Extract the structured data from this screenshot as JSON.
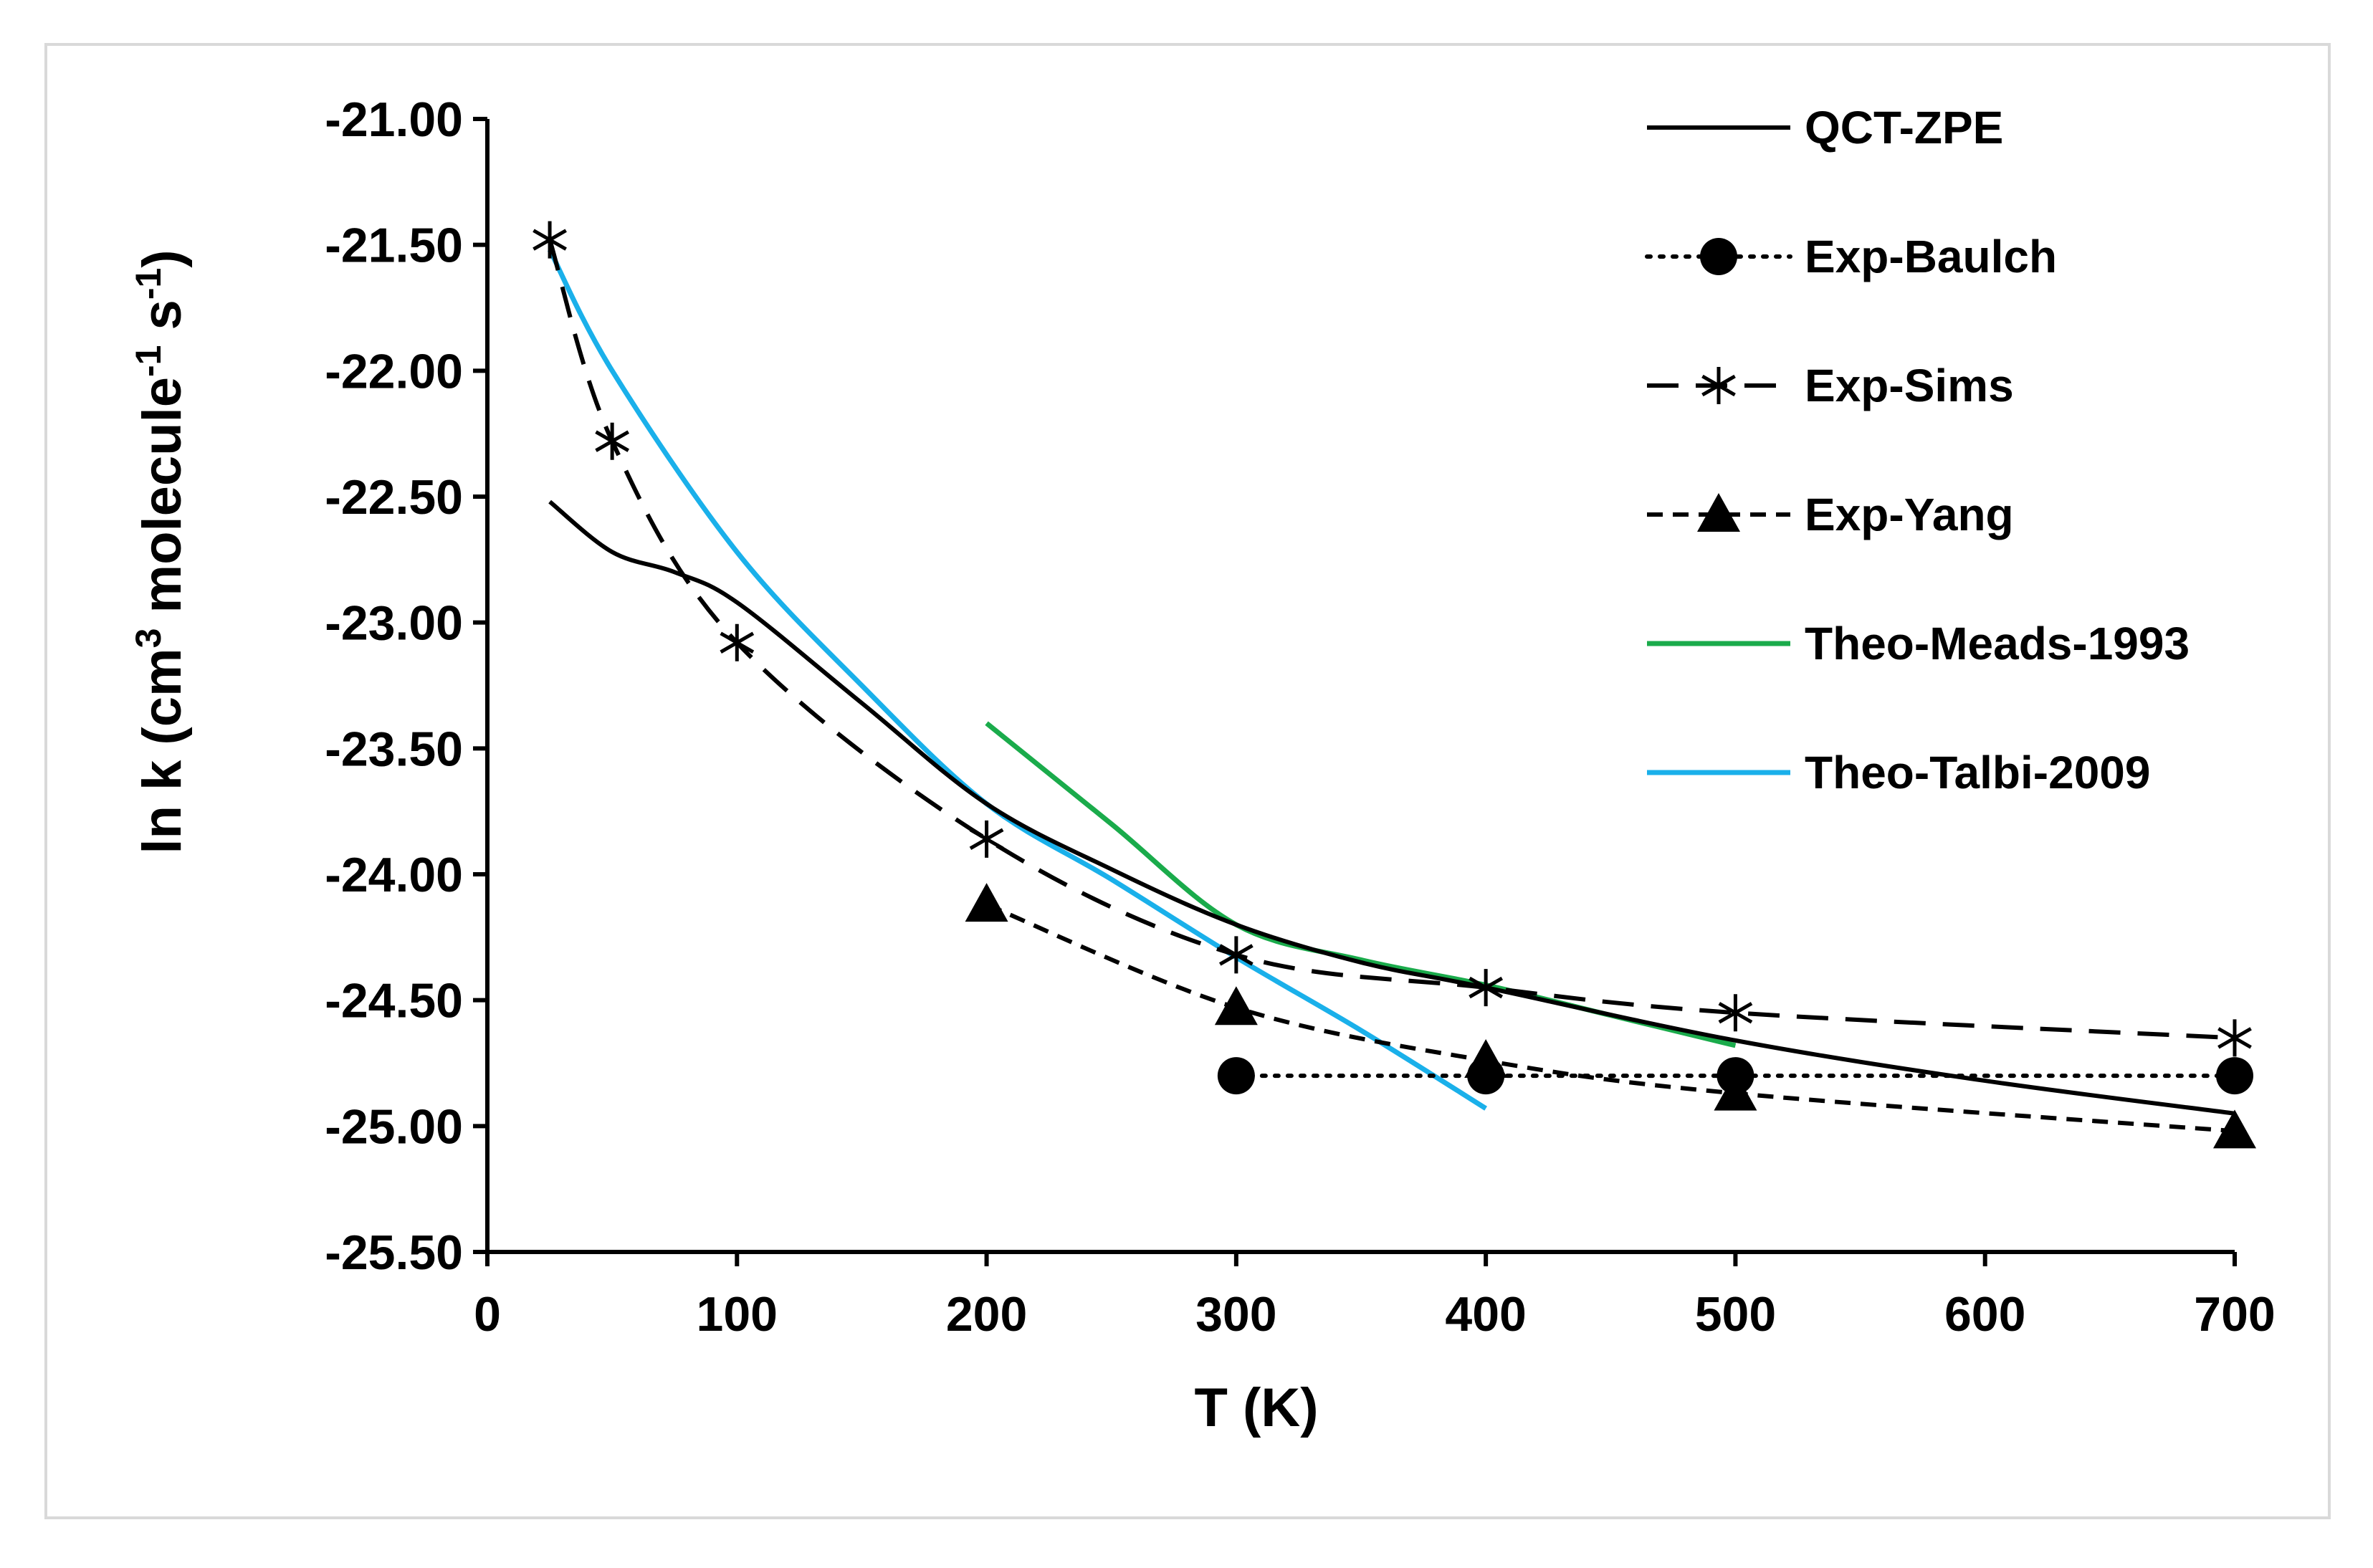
{
  "chart_data": {
    "type": "line",
    "title": "",
    "xlabel": "T (K)",
    "ylabel": {
      "prefix": "ln k (cm",
      "sup1": "3",
      "mid": " molecule",
      "sup2": "-1",
      "mid2": " s",
      "sup3": "-1",
      "suffix": ")"
    },
    "xlim": [
      0,
      700
    ],
    "ylim": [
      -25.5,
      -21.0
    ],
    "x_ticks": [
      0,
      100,
      200,
      300,
      400,
      500,
      600,
      700
    ],
    "x_tick_labels": [
      "0",
      "100",
      "200",
      "300",
      "400",
      "500",
      "600",
      "700"
    ],
    "y_ticks": [
      -21.0,
      -21.5,
      -22.0,
      -22.5,
      -23.0,
      -23.5,
      -24.0,
      -24.5,
      -25.0,
      -25.5
    ],
    "y_tick_labels": [
      "-21.00",
      "-21.50",
      "-22.00",
      "-22.50",
      "-23.00",
      "-23.50",
      "-24.00",
      "-24.50",
      "-25.00",
      "-25.50"
    ],
    "legend_position": "top-right",
    "series": [
      {
        "name": "QCT-ZPE",
        "color": "#000000",
        "dash": "solid",
        "marker": "none",
        "smooth": true,
        "x": [
          25,
          50,
          75,
          100,
          150,
          200,
          250,
          300,
          350,
          400,
          500,
          600,
          700
        ],
        "y": [
          -22.52,
          -22.72,
          -22.8,
          -22.92,
          -23.32,
          -23.72,
          -23.98,
          -24.2,
          -24.35,
          -24.45,
          -24.66,
          -24.82,
          -24.95
        ]
      },
      {
        "name": "Exp-Baulch",
        "color": "#000000",
        "dash": "dotted",
        "marker": "circle",
        "smooth": false,
        "x": [
          300,
          400,
          500,
          700
        ],
        "y": [
          -24.8,
          -24.8,
          -24.8,
          -24.8
        ]
      },
      {
        "name": "Exp-Sims",
        "color": "#000000",
        "dash": "longdash",
        "marker": "asterisk",
        "smooth": true,
        "x": [
          25,
          50,
          100,
          200,
          300,
          400,
          500,
          700
        ],
        "y": [
          -21.48,
          -22.28,
          -23.08,
          -23.86,
          -24.32,
          -24.45,
          -24.55,
          -24.65
        ]
      },
      {
        "name": "Exp-Yang",
        "color": "#000000",
        "dash": "shortdash",
        "marker": "triangle",
        "smooth": true,
        "x": [
          200,
          300,
          400,
          500,
          700
        ],
        "y": [
          -24.12,
          -24.53,
          -24.74,
          -24.87,
          -25.02
        ]
      },
      {
        "name": "Theo-Meads-1993",
        "color": "#1aab4b",
        "dash": "solid",
        "marker": "none",
        "smooth": true,
        "x": [
          200,
          250,
          300,
          350,
          400,
          450,
          500
        ],
        "y": [
          -23.4,
          -23.8,
          -24.2,
          -24.34,
          -24.44,
          -24.56,
          -24.68
        ]
      },
      {
        "name": "Theo-Talbi-2009",
        "color": "#1ab0ea",
        "dash": "solid",
        "marker": "none",
        "smooth": true,
        "x": [
          25,
          50,
          100,
          150,
          200,
          250,
          300,
          350,
          400
        ],
        "y": [
          -21.52,
          -22.0,
          -22.72,
          -23.25,
          -23.72,
          -24.02,
          -24.33,
          -24.62,
          -24.93
        ]
      }
    ]
  }
}
